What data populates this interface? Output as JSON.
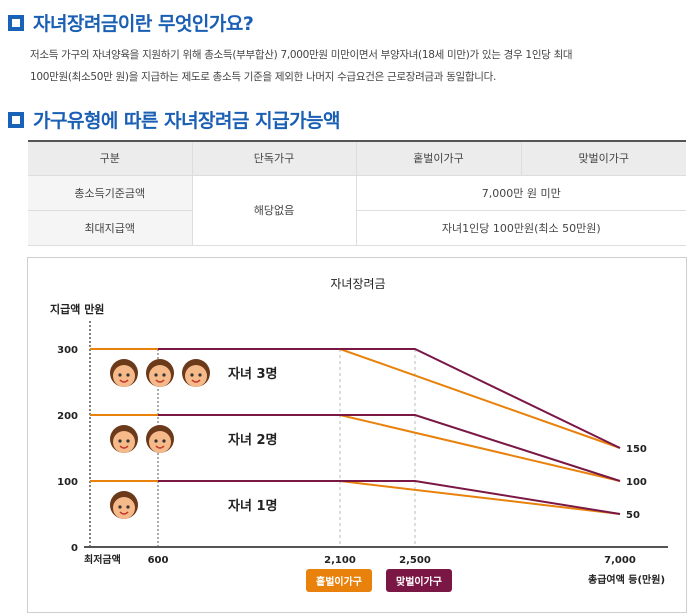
{
  "section1": {
    "title": "자녀장려금이란 무엇인가요?",
    "line1": "저소득 가구의 자녀양육을 지원하기 위해 총소득(부부합산) 7,000만원 미만이면서 부양자녀(18세 미만)가 있는 경우 1인당 최대",
    "line2": "100만원(최소50만 원)을 지급하는 제도로 총소득 기준을 제외한 나머지 수급요건은 근로장려금과 동일합니다."
  },
  "section2": {
    "title": "가구유형에 따른 자녀장려금 지급가능액"
  },
  "table": {
    "headers": [
      "구분",
      "단독가구",
      "홑벌이가구",
      "맞벌이가구"
    ],
    "rows": [
      {
        "label": "총소득기준금액",
        "single": "해당없음",
        "shared": "7,000만 원 미만"
      },
      {
        "label": "최대지급액",
        "shared": "자녀1인당 100만원(최소 50만원)"
      }
    ]
  },
  "colors": {
    "single_income": "#e8820c",
    "dual_income": "#7a1745",
    "accent": "#1a5fb4"
  },
  "chart_data": {
    "type": "line",
    "title": "자녀장려금",
    "ylabel": "지급액 만원",
    "xlabel": "총급여액 등(만원)",
    "x_origin_label": "최저금액",
    "ylim": [
      0,
      300
    ],
    "xticks": [
      600,
      2100,
      2500,
      7000
    ],
    "xtick_labels": [
      "600",
      "2,100",
      "2,500",
      "7,000"
    ],
    "yticks": [
      0,
      100,
      200,
      300
    ],
    "right_labels": [
      150,
      100,
      50
    ],
    "series": [
      {
        "name": "홑벌이가구",
        "group": "자녀 3명",
        "points": [
          [
            0,
            300
          ],
          [
            2100,
            300
          ],
          [
            7000,
            150
          ]
        ]
      },
      {
        "name": "맞벌이가구",
        "group": "자녀 3명",
        "points": [
          [
            600,
            300
          ],
          [
            2500,
            300
          ],
          [
            7000,
            150
          ]
        ]
      },
      {
        "name": "홑벌이가구",
        "group": "자녀 2명",
        "points": [
          [
            0,
            200
          ],
          [
            2100,
            200
          ],
          [
            7000,
            100
          ]
        ]
      },
      {
        "name": "맞벌이가구",
        "group": "자녀 2명",
        "points": [
          [
            600,
            200
          ],
          [
            2500,
            200
          ],
          [
            7000,
            100
          ]
        ]
      },
      {
        "name": "홑벌이가구",
        "group": "자녀 1명",
        "points": [
          [
            0,
            100
          ],
          [
            2100,
            100
          ],
          [
            7000,
            50
          ]
        ]
      },
      {
        "name": "맞벌이가구",
        "group": "자녀 1명",
        "points": [
          [
            600,
            100
          ],
          [
            2500,
            100
          ],
          [
            7000,
            50
          ]
        ]
      }
    ],
    "group_labels": [
      {
        "text": "자녀 3명",
        "kids": 3,
        "y": 300
      },
      {
        "text": "자녀 2명",
        "kids": 2,
        "y": 200
      },
      {
        "text": "자녀 1명",
        "kids": 1,
        "y": 100
      }
    ],
    "legend": [
      "홑벌이가구",
      "맞벌이가구"
    ]
  }
}
